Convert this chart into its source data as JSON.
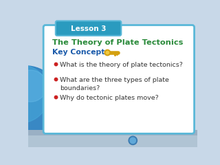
{
  "lesson_label": "Lesson 3",
  "title": "The Theory of Plate Tectonics",
  "subtitle": "Key Concepts",
  "bullet_points": [
    "What is the theory of plate tectonics?",
    "What are the three types of plate\nboundaries?",
    "Why do tectonic plates move?"
  ],
  "bg_outer": "#c8d8e8",
  "bg_globe": "#2a7fc0",
  "card_bg": "#ffffff",
  "card_border": "#5ab8d8",
  "tab_bg": "#2a9bbf",
  "tab_text": "#ffffff",
  "title_color": "#2a8a3a",
  "subtitle_color": "#1a5aaa",
  "bullet_color": "#333333",
  "bullet_dot_color": "#cc2222",
  "bottom_bg": "#a0b8cc",
  "key_color": "#d4a010",
  "key_highlight": "#f0c840"
}
